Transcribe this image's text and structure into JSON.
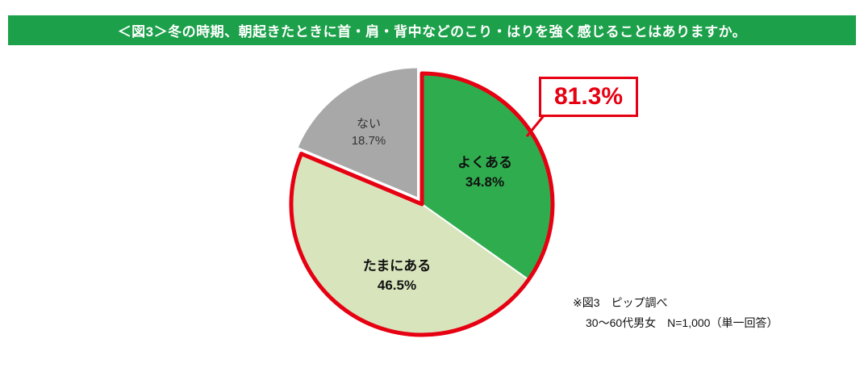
{
  "header": {
    "title": "＜図3＞冬の時期、朝起きたときに首・肩・背中などのこり・はりを強く感じることはありますか。",
    "bg_color": "#1ca04a",
    "text_color": "#ffffff"
  },
  "chart_data": {
    "type": "pie",
    "direction": "clockwise",
    "start_angle_deg": 0,
    "slices": [
      {
        "label": "よくある",
        "value": 34.8,
        "pct_label": "34.8%",
        "color": "#2fad4e",
        "exploded": false
      },
      {
        "label": "たまにある",
        "value": 46.5,
        "pct_label": "46.5%",
        "color": "#d8e4bc",
        "exploded": false
      },
      {
        "label": "ない",
        "value": 18.7,
        "pct_label": "18.7%",
        "color": "#a8a8a8",
        "exploded": true
      }
    ],
    "highlight": {
      "label": "81.3%",
      "value": 81.3,
      "covers": [
        "よくある",
        "たまにある"
      ],
      "color": "#e60012"
    }
  },
  "footnote": {
    "line1": "※図3　ピップ調べ",
    "line2": "30〜60代男女　N=1,000（単一回答）"
  }
}
